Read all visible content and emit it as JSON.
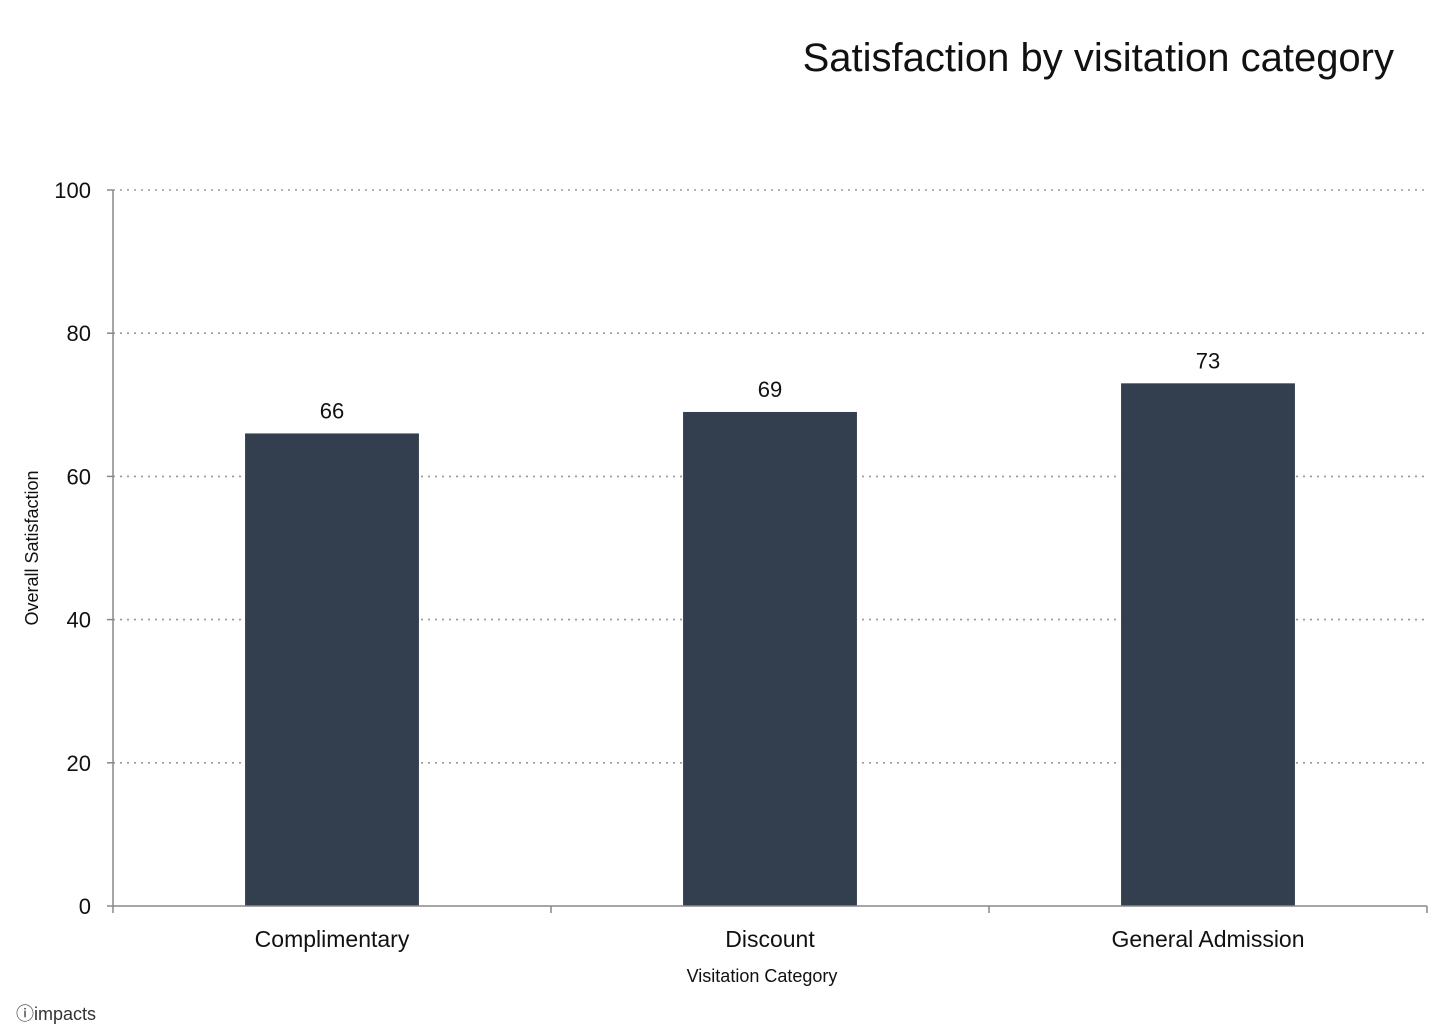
{
  "chart_data": {
    "type": "bar",
    "title": "Satisfaction by visitation category",
    "xlabel": "Visitation Category",
    "ylabel": "Overall Satisfaction",
    "categories": [
      "Complimentary",
      "Discount",
      "General Admission"
    ],
    "values": [
      66,
      69,
      73
    ],
    "data_labels": [
      "66",
      "69",
      "73"
    ],
    "ylim": [
      0,
      100
    ],
    "yticks": [
      0,
      20,
      40,
      60,
      80,
      100
    ],
    "grid": true,
    "legend": "none",
    "colors": {
      "bar": "#333f4f",
      "grid": "#999999",
      "axis": "#888888",
      "text": "#111111"
    }
  },
  "brand": {
    "label": "impacts",
    "icon": "info-circle-icon"
  }
}
